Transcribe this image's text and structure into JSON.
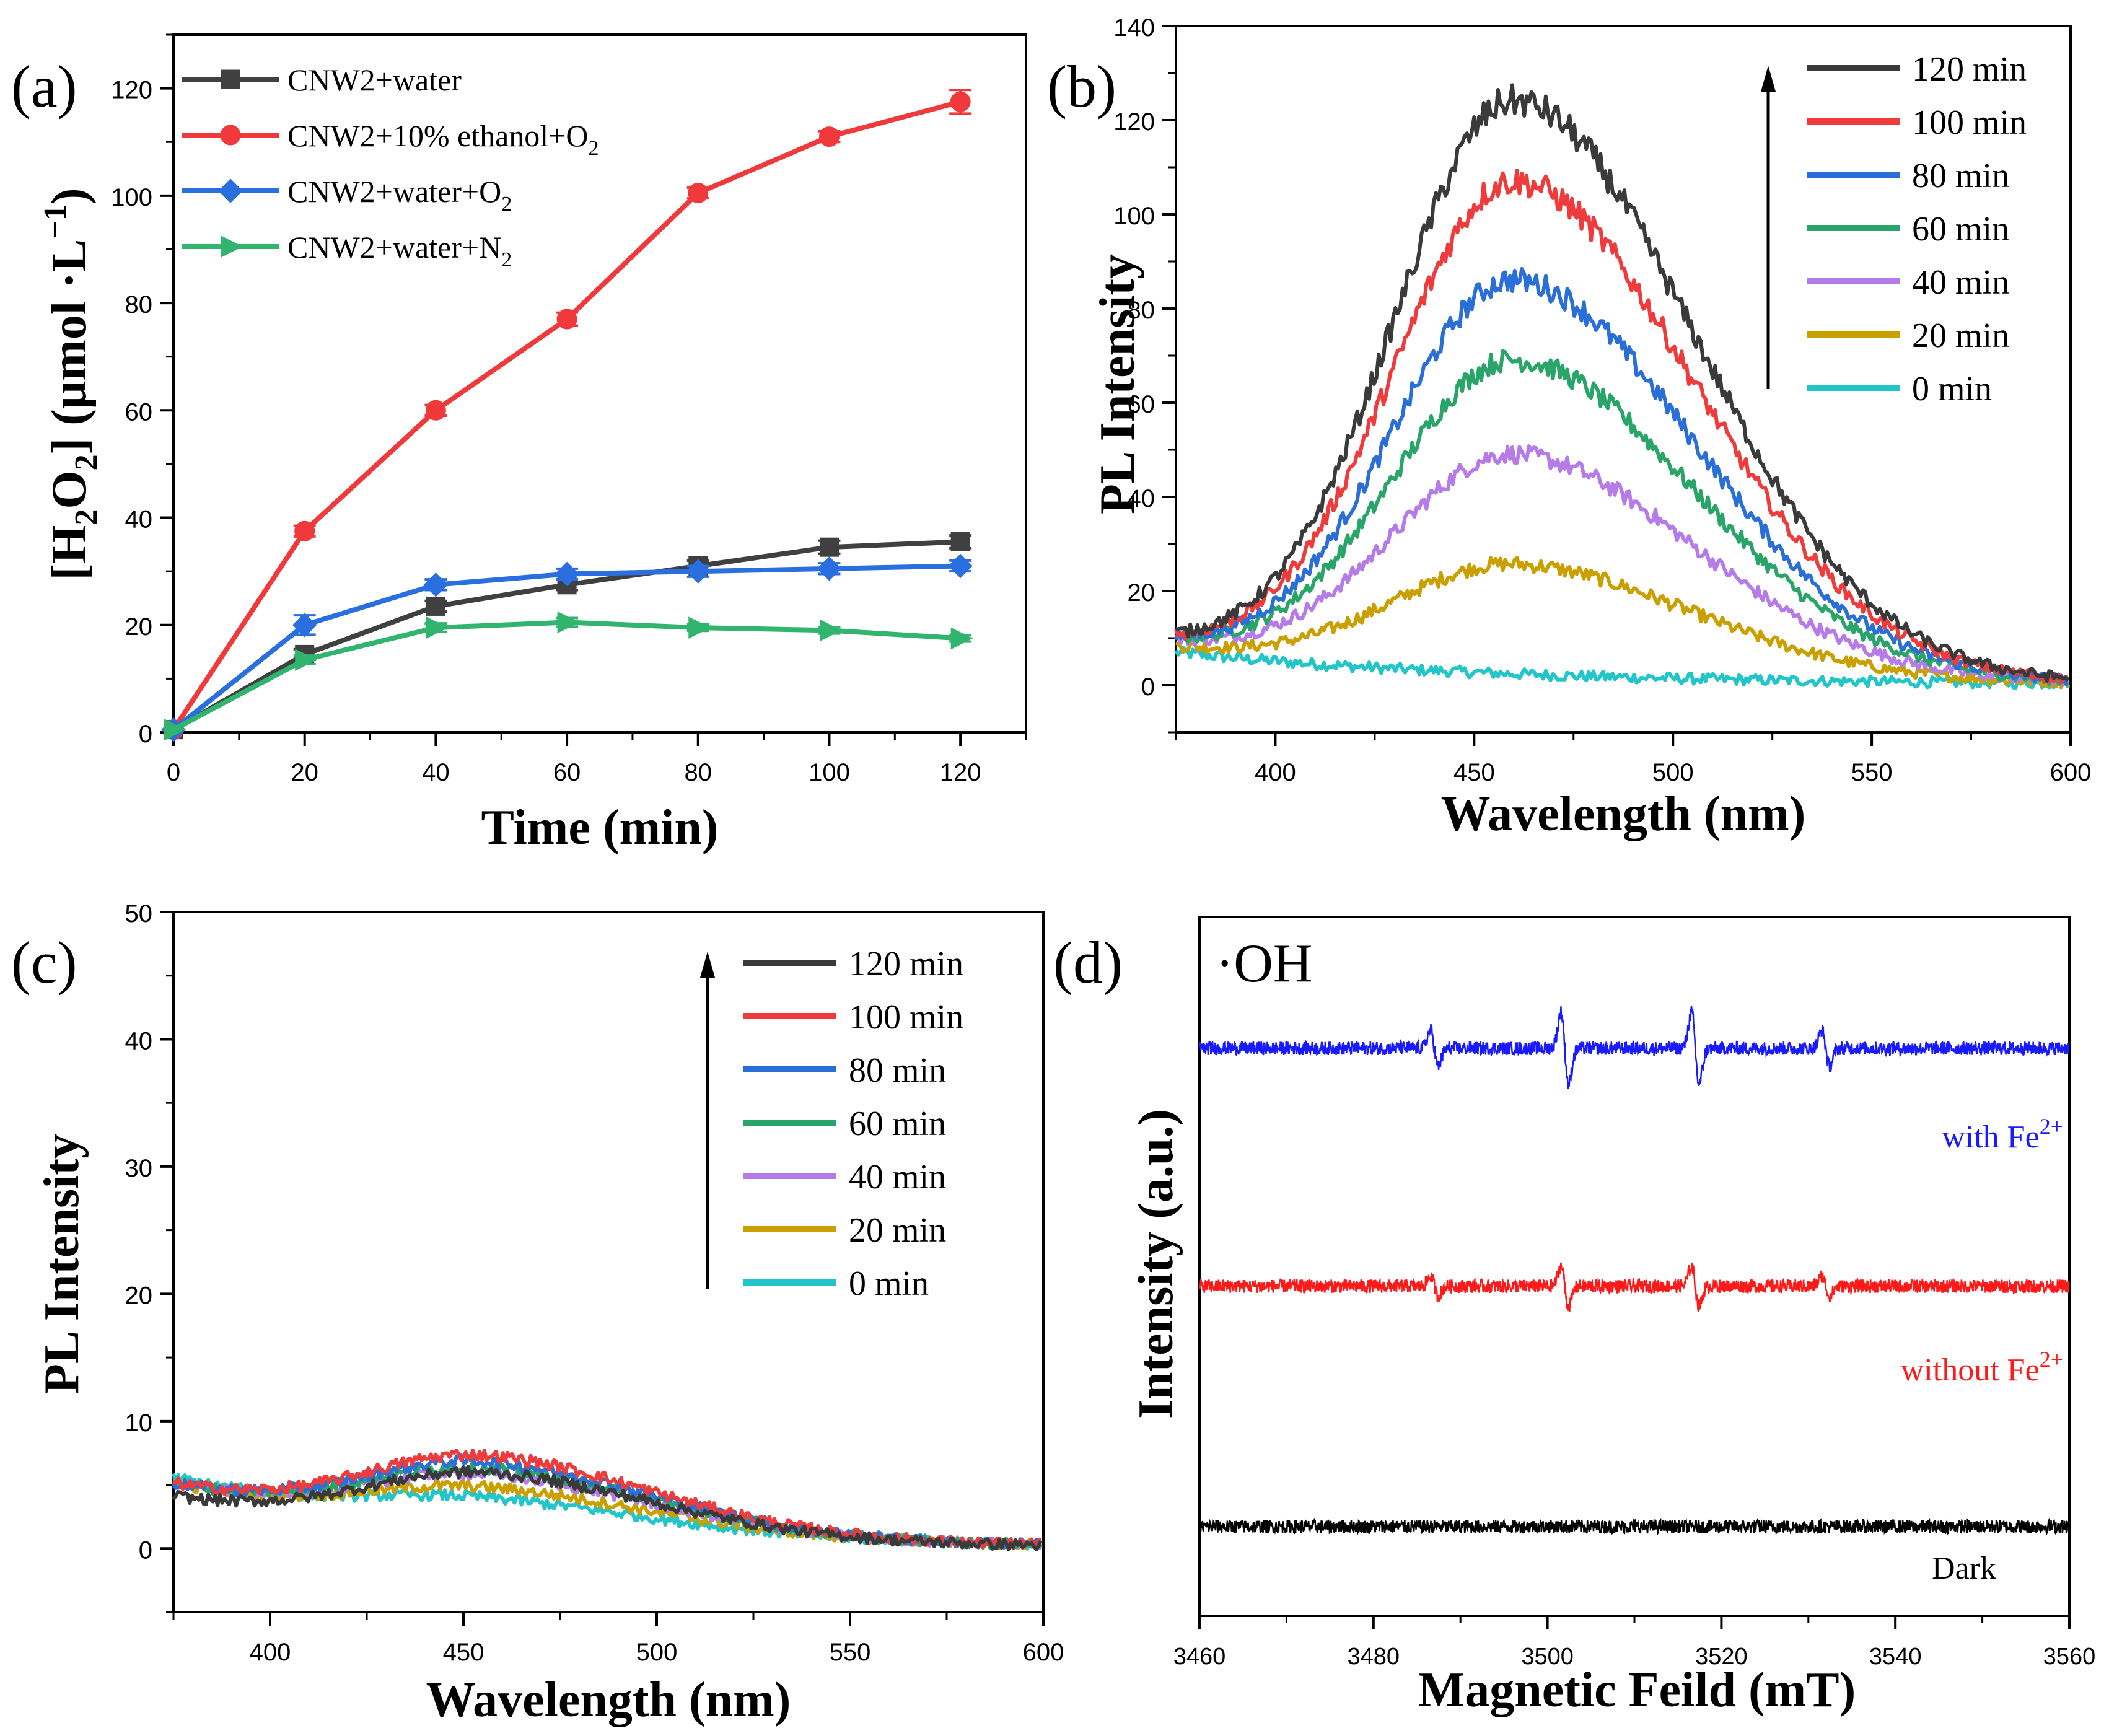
{
  "chart_data": [
    {
      "panel": "(a)",
      "type": "line",
      "xlabel": "Time (min)",
      "ylabel": "[H2O2] (μmol·L−1)",
      "ylabel_parts": {
        "lb": "[H",
        "s1": "2",
        "o": "O",
        "s2": "2",
        "rb": "] (μmol ·L",
        "sup": "−1",
        "end": ")"
      },
      "xlim": [
        0,
        130
      ],
      "ylim": [
        0,
        130
      ],
      "xticks": [
        0,
        20,
        40,
        60,
        80,
        100,
        120
      ],
      "yticks": [
        0,
        20,
        40,
        60,
        80,
        100,
        120
      ],
      "x": [
        0,
        20,
        40,
        60,
        80,
        100,
        120
      ],
      "series": [
        {
          "name": "CNW2+water",
          "label_main": "CNW2+water",
          "label_sub": "",
          "color": "#404040",
          "marker": "square",
          "values": [
            0.5,
            14.5,
            23.5,
            27.5,
            31,
            34.5,
            35.5
          ],
          "errors": [
            0,
            1,
            1,
            1,
            1,
            1.2,
            1.2
          ]
        },
        {
          "name": "CNW2+10% ethanol+O2",
          "label_main": "CNW2+10% ethanol+O",
          "label_sub": "2",
          "color": "#f0393b",
          "marker": "circle",
          "values": [
            0.5,
            37.5,
            60,
            77,
            100.5,
            111,
            117.5
          ],
          "errors": [
            0,
            1,
            1,
            1.2,
            1,
            1,
            2.2
          ]
        },
        {
          "name": "CNW2+water+O2",
          "label_main": "CNW2+water+O",
          "label_sub": "2",
          "color": "#2a6fe0",
          "marker": "diamond",
          "values": [
            0.5,
            20,
            27.5,
            29.5,
            30,
            30.5,
            31
          ],
          "errors": [
            0,
            1.8,
            1,
            1,
            1,
            1,
            1
          ]
        },
        {
          "name": "CNW2+water+N2",
          "label_main": "CNW2+water+N",
          "label_sub": "2",
          "color": "#30b46e",
          "marker": "triangle-right",
          "values": [
            0.5,
            13.5,
            19.5,
            20.5,
            19.5,
            19,
            17.5
          ],
          "errors": [
            0,
            0.8,
            0.8,
            0.8,
            0.6,
            0.6,
            0.6
          ]
        }
      ]
    },
    {
      "panel": "(b)",
      "type": "line",
      "xlabel": "Wavelength (nm)",
      "ylabel": "PL Intensity",
      "xlim": [
        375,
        600
      ],
      "ylim": [
        -10,
        140
      ],
      "xticks": [
        400,
        450,
        500,
        550,
        600
      ],
      "yticks": [
        0,
        20,
        40,
        60,
        80,
        100,
        120,
        140
      ],
      "peak_center_nm": 460,
      "series": [
        {
          "name": "120 min",
          "color": "#3a3a3a",
          "peak": 121,
          "baseline_start": 9
        },
        {
          "name": "100 min",
          "color": "#ef3b3b",
          "peak": 104,
          "baseline_start": 9
        },
        {
          "name": "80 min",
          "color": "#2a6fd8",
          "peak": 83,
          "baseline_start": 9
        },
        {
          "name": "60 min",
          "color": "#2aa56a",
          "peak": 66,
          "baseline_start": 9
        },
        {
          "name": "40 min",
          "color": "#b57be8",
          "peak": 46,
          "baseline_start": 9
        },
        {
          "name": "20 min",
          "color": "#c9a000",
          "peak": 23,
          "baseline_start": 8
        },
        {
          "name": "0 min",
          "color": "#22c5c8",
          "peak": 0,
          "baseline_start": 7
        }
      ]
    },
    {
      "panel": "(c)",
      "type": "line",
      "xlabel": "Wavelength (nm)",
      "ylabel": "PL Intensity",
      "xlim": [
        375,
        600
      ],
      "ylim": [
        -5,
        50
      ],
      "xticks": [
        400,
        450,
        500,
        550,
        600
      ],
      "yticks": [
        0,
        10,
        20,
        30,
        40,
        50
      ],
      "peak_center_nm": 455,
      "series": [
        {
          "name": "120 min",
          "color": "#3a3a3a",
          "peak": 4.5,
          "baseline_start": 4
        },
        {
          "name": "100 min",
          "color": "#ef3b3b",
          "peak": 5.5,
          "baseline_start": 5
        },
        {
          "name": "80 min",
          "color": "#2a6fd8",
          "peak": 5,
          "baseline_start": 5
        },
        {
          "name": "60 min",
          "color": "#2aa56a",
          "peak": 4.5,
          "baseline_start": 5
        },
        {
          "name": "40 min",
          "color": "#b57be8",
          "peak": 4,
          "baseline_start": 5
        },
        {
          "name": "20 min",
          "color": "#c9a000",
          "peak": 3,
          "baseline_start": 5
        },
        {
          "name": "0 min",
          "color": "#22c5c8",
          "peak": 2,
          "baseline_start": 5.5
        }
      ]
    },
    {
      "panel": "(d)",
      "type": "line",
      "title": "·OH",
      "xlabel": "Magnetic Feild (mT)",
      "ylabel": "Intensity (a.u.)",
      "xlim": [
        3460,
        3560
      ],
      "xticks": [
        3460,
        3480,
        3500,
        3520,
        3540,
        3560
      ],
      "peak_positions_mT": [
        3487,
        3502,
        3517,
        3532
      ],
      "peak_amplitude_ratio": [
        1,
        2,
        2,
        1
      ],
      "series": [
        {
          "name": "with Fe2+",
          "label_main": "with Fe",
          "label_sup": "2+",
          "color": "#1a1aff",
          "offset": 3,
          "amplitude": 1.0
        },
        {
          "name": "without Fe2+",
          "label_main": "without Fe",
          "label_sup": "2+",
          "color": "#ff1a1a",
          "offset": 2,
          "amplitude": 0.55
        },
        {
          "name": "Dark",
          "label_main": "Dark",
          "label_sup": "",
          "color": "#000000",
          "offset": 1,
          "amplitude": 0
        }
      ]
    }
  ]
}
